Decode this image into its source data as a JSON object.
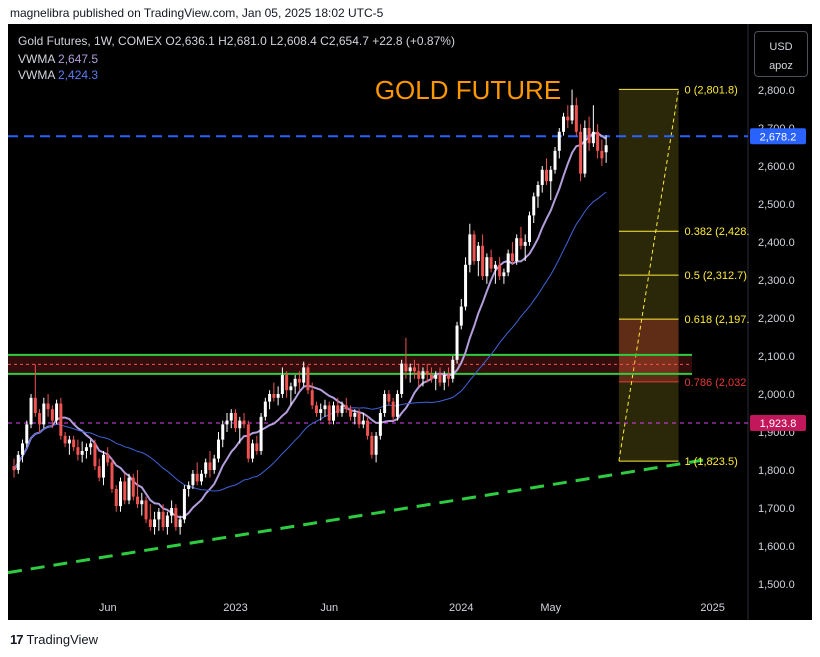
{
  "header": {
    "publisher": "magnelibra published on TradingView.com, Jan 05, 2025 18:02 UTC-5"
  },
  "legend": {
    "symbol": "Gold Futures, 1W, COMEX",
    "ohlc": "O2,636.1  H2,681.0  L2,608.4  C2,654.7  +22.8 (+0.87%)",
    "vwma1_label": "VWMA",
    "vwma1_value": "2,647.5",
    "vwma2_label": "VWMA",
    "vwma2_value": "2,424.3"
  },
  "currency": {
    "label": "USD",
    "sub": "apoz"
  },
  "footer": {
    "brand": "TradingView",
    "logo": "17"
  },
  "chart_data": {
    "type": "candlestick",
    "title": "GOLD FUTURE",
    "ylim": [
      1450,
      2850
    ],
    "y_ticks": [
      1500,
      1600,
      1700,
      1800,
      1900,
      2000,
      2100,
      2200,
      2300,
      2400,
      2500,
      2600,
      2700,
      2800
    ],
    "y_tick_labels": [
      "1,500.0",
      "1,600.0",
      "1,700.0",
      "1,800.0",
      "1,900.0",
      "2,000.0",
      "2,100.0",
      "2,200.0",
      "2,300.0",
      "2,400.0",
      "2,500.0",
      "2,600.0",
      "2,700.0",
      "2,800.0"
    ],
    "x_labels": [
      "Jun",
      "2023",
      "Jun",
      "2024",
      "May",
      "2025"
    ],
    "x_label_weeks": [
      22,
      52,
      74,
      105,
      126,
      164
    ],
    "last_price": "2,678.2",
    "last_price_value": 2678.2,
    "marker_price": "1,923.8",
    "marker_value": 1923.8,
    "fib": {
      "week_start": 142,
      "week_end": 156,
      "levels": [
        {
          "ratio": "0",
          "value": 2801.8,
          "label": "0 (2,801.8)",
          "color": "#ffeb3b"
        },
        {
          "ratio": "0.382",
          "value": 2428.4,
          "label": "0.382 (2,428.",
          "color": "#ffeb3b"
        },
        {
          "ratio": "0.5",
          "value": 2312.7,
          "label": "0.5 (2,312.7)",
          "color": "#ffeb3b"
        },
        {
          "ratio": "0.618",
          "value": 2197.0,
          "label": "0.618 (2,197.",
          "color": "#ffeb3b"
        },
        {
          "ratio": "0.786",
          "value": 2032.0,
          "label": "0.786 (2,032",
          "color": "#e53935"
        },
        {
          "ratio": "1",
          "value": 1823.5,
          "label": "1 (1,823.5)",
          "color": "#ffeb3b"
        }
      ]
    },
    "support_zone": {
      "top": 2103,
      "bottom": 2053,
      "mid": 2078
    },
    "trendline": {
      "w0": 0,
      "p0": 1530,
      "w1": 164,
      "p1": 1830
    },
    "candles": [
      [
        1810,
        1830,
        1780,
        1800
      ],
      [
        1800,
        1850,
        1790,
        1840
      ],
      [
        1840,
        1880,
        1820,
        1870
      ],
      [
        1870,
        1930,
        1860,
        1920
      ],
      [
        1920,
        2000,
        1910,
        1990
      ],
      [
        1990,
        2078,
        1940,
        1950
      ],
      [
        1950,
        1960,
        1900,
        1920
      ],
      [
        1920,
        1990,
        1910,
        1975
      ],
      [
        1975,
        2000,
        1940,
        1960
      ],
      [
        1960,
        1970,
        1910,
        1930
      ],
      [
        1930,
        1985,
        1920,
        1975
      ],
      [
        1975,
        1990,
        1880,
        1890
      ],
      [
        1890,
        1900,
        1860,
        1870
      ],
      [
        1870,
        1890,
        1840,
        1880
      ],
      [
        1880,
        1890,
        1850,
        1860
      ],
      [
        1860,
        1880,
        1825,
        1840
      ],
      [
        1840,
        1875,
        1820,
        1850
      ],
      [
        1850,
        1870,
        1830,
        1860
      ],
      [
        1860,
        1880,
        1840,
        1870
      ],
      [
        1870,
        1880,
        1800,
        1810
      ],
      [
        1810,
        1830,
        1770,
        1780
      ],
      [
        1780,
        1850,
        1760,
        1840
      ],
      [
        1840,
        1860,
        1810,
        1820
      ],
      [
        1820,
        1830,
        1740,
        1750
      ],
      [
        1750,
        1760,
        1690,
        1705
      ],
      [
        1705,
        1780,
        1690,
        1770
      ],
      [
        1770,
        1790,
        1710,
        1720
      ],
      [
        1720,
        1790,
        1710,
        1780
      ],
      [
        1780,
        1790,
        1720,
        1730
      ],
      [
        1730,
        1800,
        1700,
        1710
      ],
      [
        1710,
        1740,
        1680,
        1720
      ],
      [
        1720,
        1730,
        1660,
        1670
      ],
      [
        1670,
        1710,
        1640,
        1650
      ],
      [
        1650,
        1690,
        1630,
        1670
      ],
      [
        1670,
        1700,
        1640,
        1690
      ],
      [
        1690,
        1710,
        1640,
        1650
      ],
      [
        1650,
        1690,
        1630,
        1680
      ],
      [
        1680,
        1720,
        1660,
        1700
      ],
      [
        1700,
        1710,
        1640,
        1650
      ],
      [
        1650,
        1680,
        1630,
        1670
      ],
      [
        1670,
        1760,
        1660,
        1750
      ],
      [
        1750,
        1770,
        1730,
        1760
      ],
      [
        1760,
        1800,
        1750,
        1790
      ],
      [
        1790,
        1820,
        1760,
        1770
      ],
      [
        1770,
        1800,
        1760,
        1790
      ],
      [
        1790,
        1830,
        1780,
        1820
      ],
      [
        1820,
        1850,
        1780,
        1800
      ],
      [
        1800,
        1840,
        1790,
        1830
      ],
      [
        1830,
        1900,
        1820,
        1880
      ],
      [
        1880,
        1930,
        1860,
        1920
      ],
      [
        1920,
        1950,
        1900,
        1930
      ],
      [
        1930,
        1960,
        1910,
        1950
      ],
      [
        1950,
        1960,
        1900,
        1910
      ],
      [
        1910,
        1940,
        1870,
        1930
      ],
      [
        1930,
        1950,
        1910,
        1920
      ],
      [
        1920,
        1930,
        1820,
        1830
      ],
      [
        1830,
        1880,
        1820,
        1870
      ],
      [
        1870,
        1890,
        1840,
        1850
      ],
      [
        1850,
        1950,
        1840,
        1940
      ],
      [
        1940,
        1990,
        1930,
        1980
      ],
      [
        1980,
        2010,
        1960,
        2000
      ],
      [
        2000,
        2030,
        1980,
        1990
      ],
      [
        1990,
        2020,
        1970,
        2000
      ],
      [
        2000,
        2070,
        1990,
        2050
      ],
      [
        2050,
        2060,
        1990,
        2010
      ],
      [
        2010,
        2030,
        1970,
        2020
      ],
      [
        2020,
        2050,
        2000,
        2040
      ],
      [
        2040,
        2060,
        2010,
        2030
      ],
      [
        2030,
        2085,
        2020,
        2070
      ],
      [
        2070,
        2075,
        2000,
        2010
      ],
      [
        2010,
        2030,
        1960,
        1970
      ],
      [
        1970,
        1980,
        1940,
        1950
      ],
      [
        1950,
        1975,
        1930,
        1960
      ],
      [
        1960,
        1985,
        1940,
        1970
      ],
      [
        1970,
        1980,
        1920,
        1930
      ],
      [
        1930,
        1980,
        1920,
        1970
      ],
      [
        1970,
        1990,
        1940,
        1950
      ],
      [
        1950,
        1980,
        1940,
        1970
      ],
      [
        1970,
        1990,
        1950,
        1960
      ],
      [
        1960,
        1970,
        1930,
        1940
      ],
      [
        1940,
        1960,
        1920,
        1950
      ],
      [
        1950,
        1960,
        1910,
        1920
      ],
      [
        1920,
        1950,
        1910,
        1930
      ],
      [
        1930,
        1940,
        1880,
        1890
      ],
      [
        1890,
        1900,
        1830,
        1840
      ],
      [
        1840,
        1900,
        1820,
        1890
      ],
      [
        1890,
        1960,
        1880,
        1950
      ],
      [
        1950,
        2010,
        1940,
        2000
      ],
      [
        2000,
        2010,
        1970,
        1980
      ],
      [
        1980,
        1990,
        1930,
        1940
      ],
      [
        1940,
        2010,
        1930,
        2000
      ],
      [
        2000,
        2090,
        1990,
        2080
      ],
      [
        2080,
        2148,
        2040,
        2060
      ],
      [
        2060,
        2080,
        2030,
        2070
      ],
      [
        2070,
        2090,
        2040,
        2060
      ],
      [
        2060,
        2080,
        2020,
        2040
      ],
      [
        2040,
        2070,
        2020,
        2060
      ],
      [
        2060,
        2080,
        2030,
        2050
      ],
      [
        2050,
        2070,
        2030,
        2040
      ],
      [
        2040,
        2060,
        2010,
        2050
      ],
      [
        2050,
        2070,
        2020,
        2030
      ],
      [
        2030,
        2060,
        2010,
        2050
      ],
      [
        2050,
        2070,
        2020,
        2040
      ],
      [
        2040,
        2100,
        2030,
        2090
      ],
      [
        2090,
        2190,
        2080,
        2180
      ],
      [
        2180,
        2250,
        2170,
        2230
      ],
      [
        2230,
        2360,
        2220,
        2340
      ],
      [
        2340,
        2448,
        2320,
        2420
      ],
      [
        2420,
        2430,
        2340,
        2350
      ],
      [
        2350,
        2400,
        2310,
        2390
      ],
      [
        2390,
        2420,
        2300,
        2310
      ],
      [
        2310,
        2370,
        2290,
        2360
      ],
      [
        2360,
        2380,
        2320,
        2330
      ],
      [
        2330,
        2350,
        2290,
        2340
      ],
      [
        2340,
        2360,
        2300,
        2310
      ],
      [
        2310,
        2330,
        2290,
        2320
      ],
      [
        2320,
        2380,
        2310,
        2370
      ],
      [
        2370,
        2400,
        2340,
        2350
      ],
      [
        2350,
        2420,
        2340,
        2410
      ],
      [
        2410,
        2440,
        2380,
        2390
      ],
      [
        2390,
        2420,
        2350,
        2400
      ],
      [
        2400,
        2480,
        2390,
        2470
      ],
      [
        2470,
        2530,
        2450,
        2520
      ],
      [
        2520,
        2560,
        2490,
        2550
      ],
      [
        2550,
        2600,
        2530,
        2590
      ],
      [
        2590,
        2620,
        2550,
        2560
      ],
      [
        2560,
        2600,
        2510,
        2590
      ],
      [
        2590,
        2650,
        2580,
        2640
      ],
      [
        2640,
        2700,
        2620,
        2690
      ],
      [
        2690,
        2740,
        2680,
        2730
      ],
      [
        2730,
        2760,
        2700,
        2720
      ],
      [
        2720,
        2801,
        2710,
        2760
      ],
      [
        2760,
        2780,
        2680,
        2690
      ],
      [
        2690,
        2710,
        2560,
        2580
      ],
      [
        2580,
        2720,
        2570,
        2700
      ],
      [
        2700,
        2730,
        2640,
        2660
      ],
      [
        2660,
        2760,
        2650,
        2690
      ],
      [
        2690,
        2710,
        2620,
        2640
      ],
      [
        2640,
        2670,
        2600,
        2620
      ],
      [
        2636.1,
        2681,
        2608.4,
        2654.7
      ]
    ]
  }
}
